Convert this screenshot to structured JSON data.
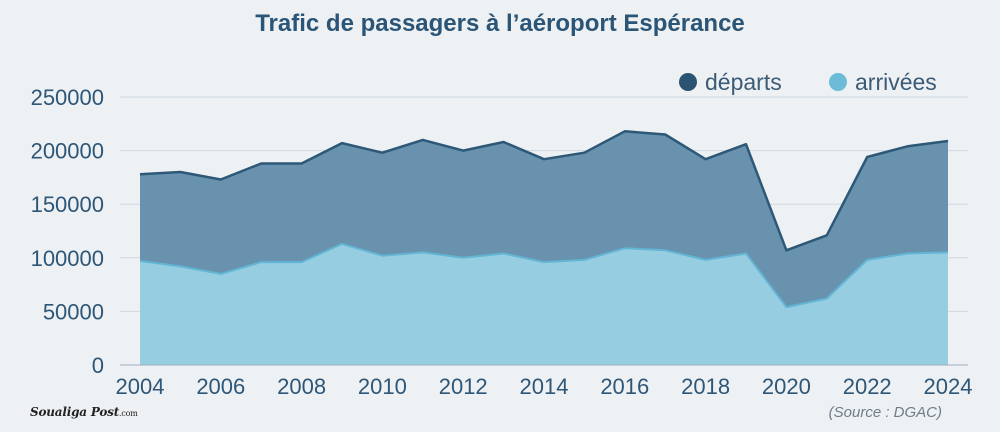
{
  "chart_data": {
    "type": "area",
    "stacked": true,
    "title": "Trafic de passagers à l’aéroport Espérance",
    "x": [
      2004,
      2005,
      2006,
      2007,
      2008,
      2009,
      2010,
      2011,
      2012,
      2013,
      2014,
      2015,
      2016,
      2017,
      2018,
      2019,
      2020,
      2021,
      2022,
      2023,
      2024
    ],
    "series": [
      {
        "name": "départs",
        "color": "#6892ad",
        "line_color": "#2d5878",
        "legend_color": "#2b5372",
        "values": [
          81000,
          88000,
          88000,
          92000,
          92000,
          94000,
          96000,
          105000,
          100000,
          104000,
          96000,
          100000,
          109000,
          108000,
          94000,
          102000,
          53000,
          59000,
          96000,
          100000,
          104000
        ]
      },
      {
        "name": "arrivées",
        "color": "#97cde1",
        "line_color": "#63b5d5",
        "legend_color": "#6cbcd9",
        "values": [
          97000,
          92000,
          85000,
          96000,
          96000,
          113000,
          102000,
          105000,
          100000,
          104000,
          96000,
          98000,
          109000,
          107000,
          98000,
          104000,
          54000,
          62000,
          98000,
          104000,
          105000
        ]
      }
    ],
    "xticks": [
      2004,
      2006,
      2008,
      2010,
      2012,
      2014,
      2016,
      2018,
      2020,
      2022,
      2024
    ],
    "yticks": [
      0,
      50000,
      100000,
      150000,
      200000,
      250000
    ],
    "xlim": [
      2004,
      2024
    ],
    "ylim": [
      0,
      250000
    ],
    "grid": true,
    "legend": "top-right"
  },
  "footer": {
    "brand": "Soualiga Post",
    "brand_suffix": ".com",
    "source": "(Source : DGAC)"
  },
  "colors": {
    "background": "#eef1f4",
    "title": "#2b5576",
    "grid": "#cfd9e1",
    "axis": "#9fb0bf"
  }
}
